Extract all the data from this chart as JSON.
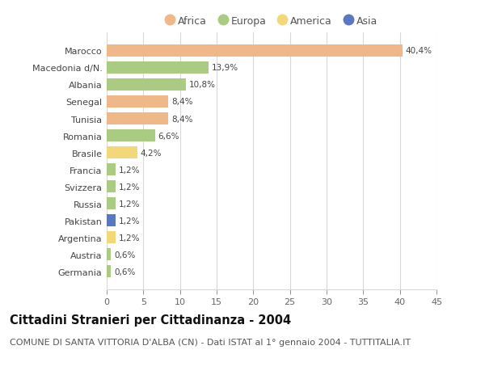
{
  "countries": [
    "Marocco",
    "Macedonia d/N.",
    "Albania",
    "Senegal",
    "Tunisia",
    "Romania",
    "Brasile",
    "Francia",
    "Svizzera",
    "Russia",
    "Pakistan",
    "Argentina",
    "Austria",
    "Germania"
  ],
  "values": [
    40.4,
    13.9,
    10.8,
    8.4,
    8.4,
    6.6,
    4.2,
    1.2,
    1.2,
    1.2,
    1.2,
    1.2,
    0.6,
    0.6
  ],
  "labels": [
    "40,4%",
    "13,9%",
    "10,8%",
    "8,4%",
    "8,4%",
    "6,6%",
    "4,2%",
    "1,2%",
    "1,2%",
    "1,2%",
    "1,2%",
    "1,2%",
    "0,6%",
    "0,6%"
  ],
  "continents": [
    "Africa",
    "Europa",
    "Europa",
    "Africa",
    "Africa",
    "Europa",
    "America",
    "Europa",
    "Europa",
    "Europa",
    "Asia",
    "America",
    "Europa",
    "Europa"
  ],
  "continent_colors": {
    "Africa": "#F0B888",
    "Europa": "#AACB82",
    "America": "#F2D878",
    "Asia": "#5878C0"
  },
  "legend_order": [
    "Africa",
    "Europa",
    "America",
    "Asia"
  ],
  "title": "Cittadini Stranieri per Cittadinanza - 2004",
  "subtitle": "COMUNE DI SANTA VITTORIA D'ALBA (CN) - Dati ISTAT al 1° gennaio 2004 - TUTTITALIA.IT",
  "xlim": [
    0,
    45
  ],
  "xticks": [
    0,
    5,
    10,
    15,
    20,
    25,
    30,
    35,
    40,
    45
  ],
  "background_color": "#ffffff",
  "grid_color": "#d8d8d8",
  "bar_height": 0.72,
  "title_fontsize": 10.5,
  "subtitle_fontsize": 8,
  "label_fontsize": 7.5,
  "tick_fontsize": 8,
  "legend_fontsize": 9
}
